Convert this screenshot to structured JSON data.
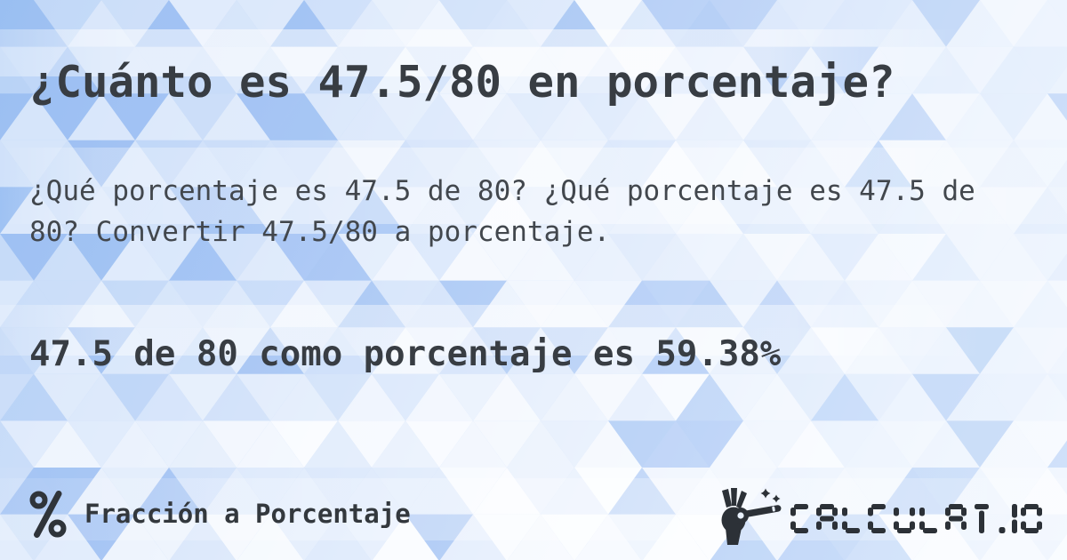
{
  "card": {
    "title": "¿Cuánto es 47.5/80 en porcentaje?",
    "description": "¿Qué porcentaje es 47.5 de 80? ¿Qué porcentaje es 47.5 de 80? Convertir 47.5/80 a porcentaje.",
    "answer": "47.5 de 80 como porcentaje es 59.38%"
  },
  "footer": {
    "category": {
      "icon": "percent-icon",
      "label": "Fracción a Porcentaje"
    },
    "brand": {
      "icon": "magic-wand-hand-icon",
      "name": "CALCULAT.IO"
    }
  },
  "colors": {
    "text_dark": "#383d43",
    "text_body": "#42474d",
    "logo": "#2c3137",
    "background_blue": "#9dc1f3",
    "highlight_white": "#ffffff"
  }
}
